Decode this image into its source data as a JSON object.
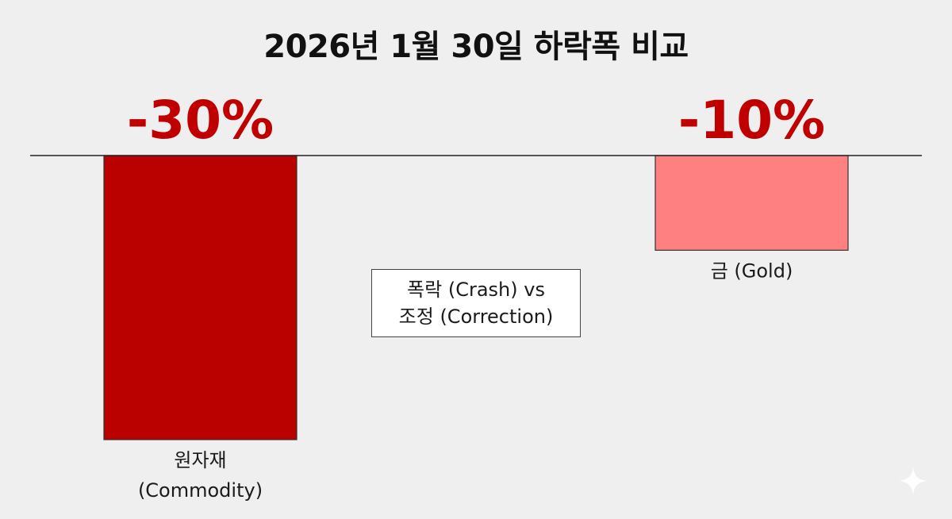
{
  "chart_data": {
    "type": "bar",
    "title": "2026년 1월 30일 하락폭 비교",
    "categories": [
      "원자재 (Commodity)",
      "금 (Gold)"
    ],
    "category_lines": [
      [
        "원자재",
        "(Commodity)"
      ],
      [
        "금 (Gold)"
      ]
    ],
    "values": [
      -30,
      -10
    ],
    "data_labels": [
      "-30%",
      "-10%"
    ],
    "ylim": [
      -30,
      0
    ],
    "grid": false,
    "colors": [
      "#bb0000",
      "#ff8080"
    ],
    "annotation": {
      "lines": [
        "폭락 (Crash) vs",
        "조정 (Correction)"
      ]
    }
  }
}
